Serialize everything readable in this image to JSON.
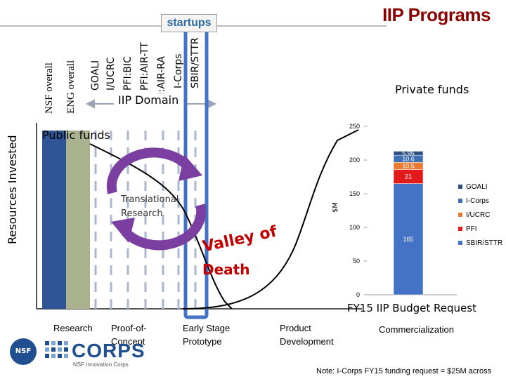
{
  "slide": {
    "title": "IIP Programs",
    "startups_label": "startups",
    "y_axis_label": "Resources Invested",
    "vertical_labels": [
      "NSF overall",
      "ENG overall",
      "GOALI",
      "I/UCRC",
      "PFI:BIC",
      "PFI:AIR-TT",
      "PFI:AIR-RA",
      "I-Corps",
      "SBIR/STTR"
    ],
    "domain_label": "IIP Domain",
    "private_funds": "Private funds",
    "public_funds": "Public funds",
    "translational": "Translational",
    "research_word": "Research",
    "valley_line1": "Valley of",
    "valley_line2": "Death",
    "stages": {
      "research": "Research",
      "proof_1": "Proof-of-",
      "proof_2": "Concept",
      "early_1": "Early Stage",
      "early_2": "Prototype",
      "product_1": "Product",
      "product_2": "Development",
      "commercialization": "Commercialization"
    },
    "logo": {
      "brand": "CORPS",
      "subtitle": "NSF Innovation Corps",
      "seal": "NSF"
    },
    "note": "Note: I-Corps FY15 funding request = $25M across",
    "colors": {
      "title": "#8b0000",
      "startups": "#2e6da4",
      "nsf_bar": "#2f5597",
      "eng_bar": "#a9b18f",
      "highlight": "#4472c4",
      "circle_arrows": "#7a3fa0",
      "valley": "#c00000"
    }
  },
  "chart_data": {
    "type": "bar",
    "title": "FY15 IIP Budget Request",
    "ylabel": "$M",
    "ylim": [
      0,
      250
    ],
    "yticks": [
      0,
      50,
      100,
      150,
      200,
      250
    ],
    "categories": [
      ""
    ],
    "series": [
      {
        "name": "SBIR/STTR",
        "values": [
          165
        ],
        "label": "165",
        "color": "#4472c4"
      },
      {
        "name": "PFI",
        "values": [
          21
        ],
        "label": "21",
        "color": "#e31a1c"
      },
      {
        "name": "I/UCRC",
        "values": [
          10.5
        ],
        "label": "10.5",
        "color": "#e87a32"
      },
      {
        "name": "I-Corps",
        "values": [
          10.6
        ],
        "label": "10.6",
        "color": "#3f6fb0"
      },
      {
        "name": "GOALI",
        "values": [
          5.95
        ],
        "label": "5.95",
        "color": "#2f4f7f"
      }
    ],
    "legend_order": [
      "GOALI",
      "I-Corps",
      "I/UCRC",
      "PFI",
      "SBIR/STTR"
    ],
    "legend": "right"
  }
}
